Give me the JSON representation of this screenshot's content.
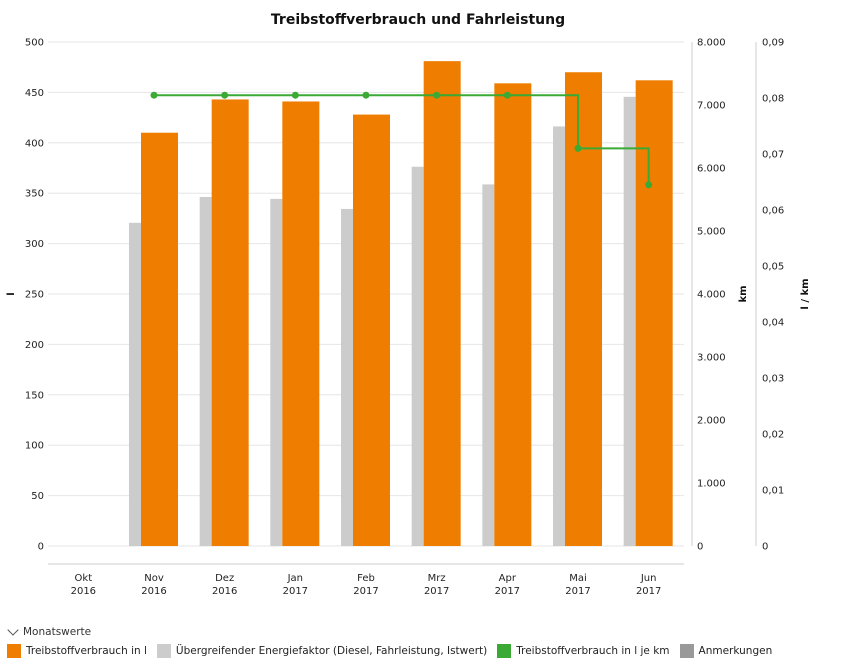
{
  "chart_data": {
    "type": "bar",
    "title": "Treibstoffverbrauch und Fahrleistung",
    "categories": [
      [
        "Okt",
        "2016"
      ],
      [
        "Nov",
        "2016"
      ],
      [
        "Dez",
        "2016"
      ],
      [
        "Jan",
        "2017"
      ],
      [
        "Feb",
        "2017"
      ],
      [
        "Mrz",
        "2017"
      ],
      [
        "Apr",
        "2017"
      ],
      [
        "Mai",
        "2017"
      ],
      [
        "Jun",
        "2017"
      ]
    ],
    "axes": {
      "left": {
        "label": "l",
        "ylim": [
          0,
          500
        ],
        "ticks": [
          "0",
          "50",
          "100",
          "150",
          "200",
          "250",
          "300",
          "350",
          "400",
          "450",
          "500"
        ]
      },
      "right1": {
        "label": "km",
        "ylim": [
          0,
          8000
        ],
        "ticks": [
          "0",
          "1.000",
          "2.000",
          "3.000",
          "4.000",
          "5.000",
          "6.000",
          "7.000",
          "8.000"
        ]
      },
      "right2": {
        "label": "l / km",
        "ylim": [
          0,
          0.09
        ],
        "ticks": [
          "0",
          "0,01",
          "0,02",
          "0,03",
          "0,04",
          "0,05",
          "0,06",
          "0,07",
          "0,08",
          "0,09"
        ]
      }
    },
    "series": [
      {
        "name": "Treibstoffverbrauch in l",
        "type": "bar",
        "axis": "left",
        "color": "#ef7d00",
        "values": [
          null,
          410,
          443,
          441,
          428,
          481,
          459,
          470,
          462
        ]
      },
      {
        "name": "Übergreifender Energiefaktor (Diesel, Fahrleistung, Istwert)",
        "type": "bar",
        "axis": "right1",
        "color": "#cccccc",
        "values": [
          null,
          5130,
          5540,
          5510,
          5350,
          6020,
          5740,
          6660,
          7130
        ]
      },
      {
        "name": "Treibstoffverbrauch in l je km",
        "type": "step-line",
        "axis": "right2",
        "color": "#3aaa35",
        "values": [
          null,
          0.0805,
          0.0805,
          0.0805,
          0.0805,
          0.0805,
          0.0805,
          0.071,
          0.0645
        ]
      }
    ],
    "grid": true,
    "legend_position": "bottom-left"
  },
  "legend": {
    "header": "Monatswerte",
    "items": [
      {
        "label": "Treibstoffverbrauch in l",
        "color": "#ef7d00"
      },
      {
        "label": "Übergreifender Energiefaktor (Diesel, Fahrleistung, Istwert)",
        "color": "#cccccc"
      },
      {
        "label": "Treibstoffverbrauch in l je km",
        "color": "#3aaa35"
      },
      {
        "label": "Anmerkungen",
        "color": "#999999"
      }
    ]
  }
}
